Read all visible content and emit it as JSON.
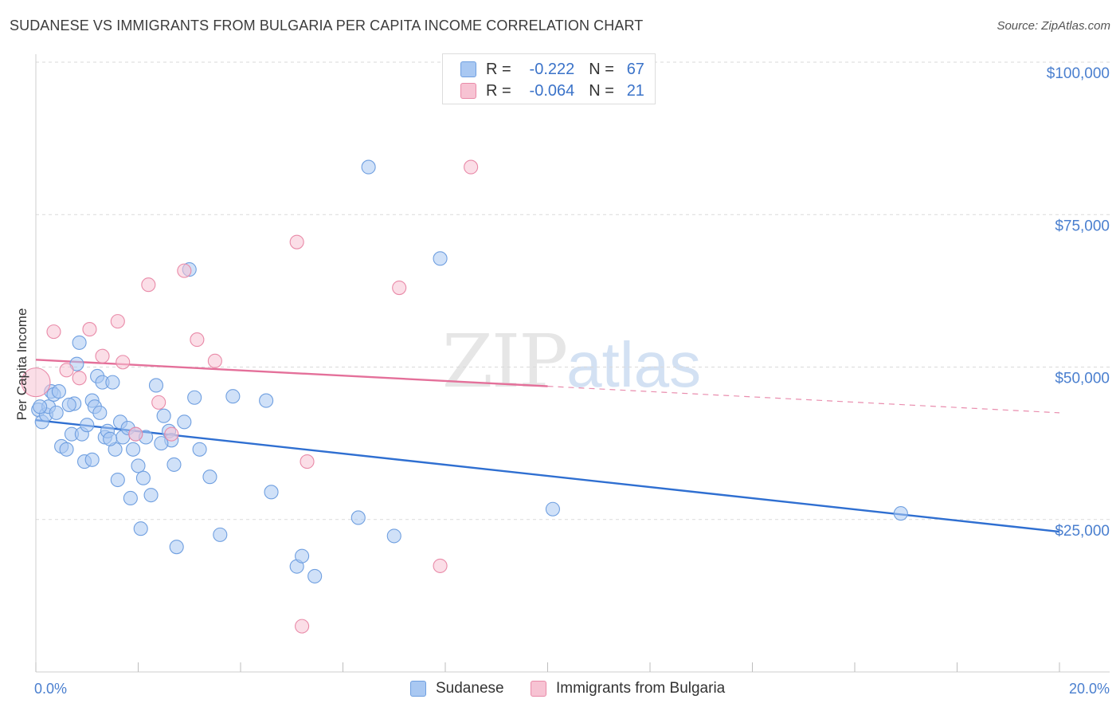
{
  "header": {
    "title": "SUDANESE VS IMMIGRANTS FROM BULGARIA PER CAPITA INCOME CORRELATION CHART",
    "source": "Source: ZipAtlas.com"
  },
  "watermark": {
    "zip": "ZIP",
    "atlas": "atlas"
  },
  "legend": {
    "rows": [
      {
        "r_label": "R =",
        "r_value": "-0.222",
        "n_label": "N =",
        "n_value": "67",
        "color": "#a9c8f2"
      },
      {
        "r_label": "R =",
        "r_value": "-0.064",
        "n_label": "N =",
        "n_value": "21",
        "color": "#f5b8cb"
      }
    ]
  },
  "bottom_legend": {
    "series1": "Sudanese",
    "series2": "Immigrants from Bulgaria"
  },
  "colors": {
    "blue_fill": "#a9c8f2",
    "blue_stroke": "#6f9fe0",
    "blue_line": "#2f6fd1",
    "pink_fill": "#f7c3d3",
    "pink_stroke": "#e98aa8",
    "pink_line": "#e4709a",
    "tick_text": "#4a7fcf"
  },
  "chart_data": {
    "type": "scatter",
    "title": "SUDANESE VS IMMIGRANTS FROM BULGARIA PER CAPITA INCOME CORRELATION CHART",
    "xlabel": "",
    "ylabel": "Per Capita Income",
    "xlim": [
      0,
      20
    ],
    "ylim": [
      0,
      100000
    ],
    "x_tick_labels": [
      "0.0%",
      "20.0%"
    ],
    "y_ticks": [
      25000,
      50000,
      75000,
      100000
    ],
    "y_tick_labels": [
      "$25,000",
      "$50,000",
      "$75,000",
      "$100,000"
    ],
    "grid": true,
    "legend_placement": "top-center",
    "series": [
      {
        "name": "Sudanese",
        "color": "#a9c8f2",
        "trend": {
          "x": [
            0,
            20
          ],
          "y": [
            41300,
            23000
          ],
          "solid_to": 20
        },
        "points": [
          [
            0.05,
            43000
          ],
          [
            0.12,
            41000
          ],
          [
            0.2,
            42200
          ],
          [
            0.25,
            43500
          ],
          [
            0.3,
            46000
          ],
          [
            0.35,
            45500
          ],
          [
            0.45,
            46000
          ],
          [
            0.5,
            37000
          ],
          [
            0.6,
            36500
          ],
          [
            0.7,
            39000
          ],
          [
            0.75,
            44000
          ],
          [
            0.8,
            50500
          ],
          [
            0.85,
            54000
          ],
          [
            0.9,
            39000
          ],
          [
            0.95,
            34500
          ],
          [
            1.0,
            40500
          ],
          [
            1.1,
            34800
          ],
          [
            1.1,
            44500
          ],
          [
            1.15,
            43500
          ],
          [
            1.2,
            48500
          ],
          [
            1.25,
            42500
          ],
          [
            1.3,
            47500
          ],
          [
            1.35,
            38500
          ],
          [
            1.4,
            39500
          ],
          [
            1.5,
            47500
          ],
          [
            1.55,
            36500
          ],
          [
            1.6,
            31500
          ],
          [
            1.65,
            41000
          ],
          [
            1.7,
            38500
          ],
          [
            1.8,
            40000
          ],
          [
            1.85,
            28500
          ],
          [
            1.9,
            36500
          ],
          [
            1.95,
            39000
          ],
          [
            2.0,
            33800
          ],
          [
            2.05,
            23500
          ],
          [
            2.1,
            31800
          ],
          [
            2.15,
            38500
          ],
          [
            2.25,
            29000
          ],
          [
            2.35,
            47000
          ],
          [
            2.5,
            42000
          ],
          [
            2.6,
            39500
          ],
          [
            2.65,
            38000
          ],
          [
            2.7,
            34000
          ],
          [
            2.75,
            20500
          ],
          [
            2.9,
            41000
          ],
          [
            3.0,
            66000
          ],
          [
            3.1,
            45000
          ],
          [
            3.2,
            36500
          ],
          [
            3.4,
            32000
          ],
          [
            3.6,
            22500
          ],
          [
            3.85,
            45200
          ],
          [
            4.5,
            44500
          ],
          [
            4.6,
            29500
          ],
          [
            5.1,
            17300
          ],
          [
            5.2,
            19000
          ],
          [
            5.45,
            15700
          ],
          [
            6.3,
            25300
          ],
          [
            6.5,
            82800
          ],
          [
            7.0,
            22300
          ],
          [
            7.9,
            67800
          ],
          [
            10.1,
            26700
          ],
          [
            16.9,
            26000
          ],
          [
            0.08,
            43500
          ],
          [
            0.4,
            42500
          ],
          [
            1.45,
            38200
          ],
          [
            2.45,
            37500
          ],
          [
            0.65,
            43800
          ]
        ]
      },
      {
        "name": "Immigrants from Bulgaria",
        "color": "#f7c3d3",
        "trend": {
          "x": [
            0,
            20
          ],
          "y": [
            51200,
            42500
          ],
          "solid_to": 10
        },
        "points": [
          [
            0.0,
            47500
          ],
          [
            0.35,
            55800
          ],
          [
            0.6,
            49500
          ],
          [
            0.85,
            48200
          ],
          [
            1.05,
            56200
          ],
          [
            1.3,
            51800
          ],
          [
            1.6,
            57500
          ],
          [
            1.7,
            50800
          ],
          [
            1.95,
            39000
          ],
          [
            2.2,
            63500
          ],
          [
            2.4,
            44200
          ],
          [
            2.65,
            39000
          ],
          [
            2.9,
            65800
          ],
          [
            3.15,
            54500
          ],
          [
            3.5,
            51000
          ],
          [
            5.1,
            70500
          ],
          [
            5.2,
            7500
          ],
          [
            5.3,
            34500
          ],
          [
            7.1,
            63000
          ],
          [
            7.9,
            17400
          ],
          [
            8.5,
            82800
          ]
        ]
      }
    ]
  }
}
